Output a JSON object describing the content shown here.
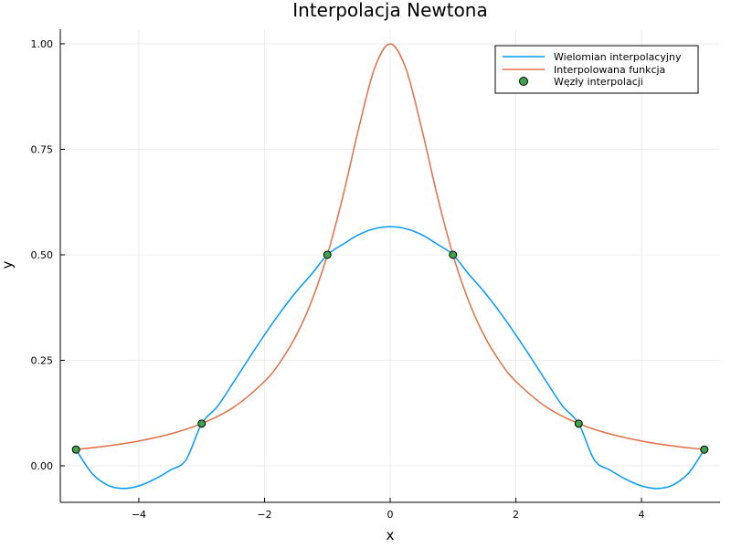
{
  "chart_data": {
    "type": "line",
    "title": "Interpolacja Newtona",
    "xlabel": "x",
    "ylabel": "y",
    "xlim": [
      -5.25,
      5.25
    ],
    "ylim": [
      -0.0865,
      1.0345
    ],
    "xticks": [
      -4,
      -2,
      0,
      2,
      4
    ],
    "yticks": [
      0.0,
      0.25,
      0.5,
      0.75,
      1.0
    ],
    "xtick_labels": [
      "−4",
      "−2",
      "0",
      "2",
      "4"
    ],
    "ytick_labels": [
      "0.00",
      "0.25",
      "0.50",
      "0.75",
      "1.00"
    ],
    "grid": true,
    "legend_position": "top-right",
    "series": [
      {
        "name": "Wielomian interpolacyjny",
        "kind": "line",
        "color": "#009AFA",
        "x": [
          -5.0,
          -4.75,
          -4.5,
          -4.25,
          -4.0,
          -3.75,
          -3.5,
          -3.25,
          -3.0,
          -2.75,
          -2.5,
          -2.25,
          -2.0,
          -1.75,
          -1.5,
          -1.25,
          -1.0,
          -0.75,
          -0.5,
          -0.25,
          0.0,
          0.25,
          0.5,
          0.75,
          1.0,
          1.25,
          1.5,
          1.75,
          2.0,
          2.25,
          2.5,
          2.75,
          3.0,
          3.25,
          3.5,
          3.75,
          4.0,
          4.25,
          4.5,
          4.75,
          5.0
        ],
        "y": [
          0.0385,
          -0.0171,
          -0.0455,
          -0.0537,
          -0.0475,
          -0.0317,
          -0.0102,
          0.0139,
          0.1,
          0.1406,
          0.1964,
          0.2541,
          0.3103,
          0.3632,
          0.4115,
          0.4543,
          0.5,
          0.5252,
          0.5477,
          0.5618,
          0.5664,
          0.5618,
          0.5477,
          0.5252,
          0.5,
          0.4543,
          0.4115,
          0.3632,
          0.3103,
          0.2541,
          0.1964,
          0.1406,
          0.1,
          0.0139,
          -0.0102,
          -0.0317,
          -0.0475,
          -0.0537,
          -0.0455,
          -0.0171,
          0.0385
        ]
      },
      {
        "name": "Interpolowana funkcja",
        "kind": "line",
        "color": "#E26F46",
        "x": [
          -5.0,
          -4.5,
          -4.0,
          -3.5,
          -3.0,
          -2.5,
          -2.0,
          -1.75,
          -1.5,
          -1.25,
          -1.0,
          -0.75,
          -0.5,
          -0.25,
          0.0,
          0.25,
          0.5,
          0.75,
          1.0,
          1.25,
          1.5,
          1.75,
          2.0,
          2.5,
          3.0,
          3.5,
          4.0,
          4.5,
          5.0
        ],
        "y": [
          0.0385,
          0.0471,
          0.0588,
          0.0755,
          0.1,
          0.1379,
          0.2,
          0.2462,
          0.3077,
          0.3902,
          0.5,
          0.64,
          0.8,
          0.9412,
          1.0,
          0.9412,
          0.8,
          0.64,
          0.5,
          0.3902,
          0.3077,
          0.2462,
          0.2,
          0.1379,
          0.1,
          0.0755,
          0.0588,
          0.0471,
          0.0385
        ]
      },
      {
        "name": "Węzły interpolacji",
        "kind": "scatter",
        "color": "#3DA44D",
        "x": [
          -5,
          -3,
          -1,
          1,
          3,
          5
        ],
        "y": [
          0.0385,
          0.1,
          0.5,
          0.5,
          0.1,
          0.0385
        ]
      }
    ]
  }
}
